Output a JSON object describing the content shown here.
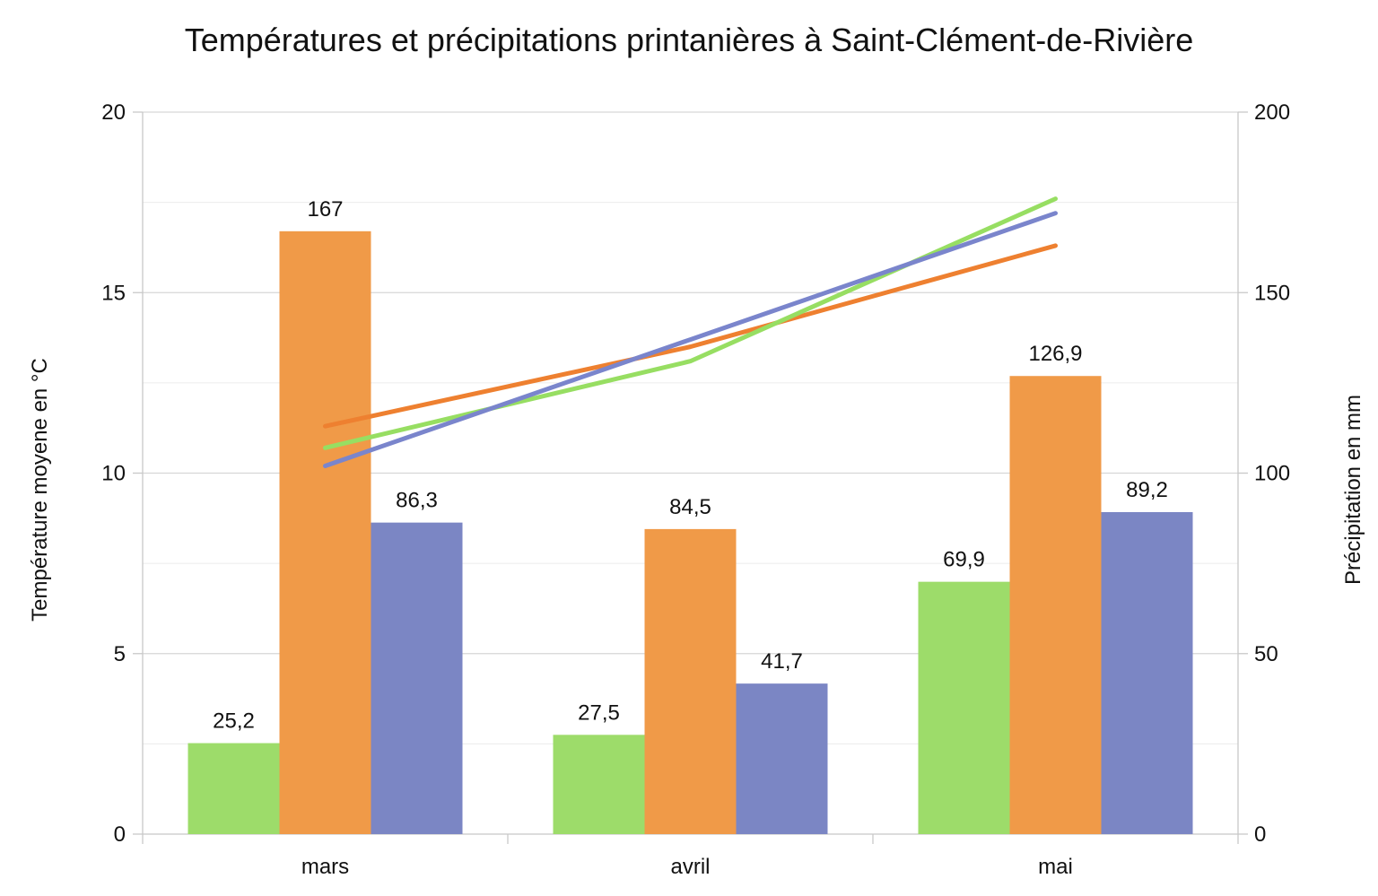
{
  "chart_data": {
    "type": "bar",
    "title": "Températures et précipitations printanières à Saint-Clément-de-Rivière",
    "categories": [
      "mars",
      "avril",
      "mai"
    ],
    "y_left": {
      "label": "Température moyene en °C",
      "range": [
        0,
        20
      ],
      "ticks": [
        "0",
        "5",
        "10",
        "15",
        "20"
      ]
    },
    "y_right": {
      "label": "Précipitation en mm",
      "range": [
        0,
        200
      ],
      "ticks": [
        "0",
        "50",
        "100",
        "150",
        "200"
      ]
    },
    "grid": true,
    "bar_series": [
      {
        "color": "#9ddc6a",
        "axis": "right",
        "values": [
          25.2,
          27.5,
          69.9
        ],
        "labels": [
          "25,2",
          "27,5",
          "69,9"
        ]
      },
      {
        "color": "#f09a48",
        "axis": "right",
        "values": [
          167,
          84.5,
          126.9
        ],
        "labels": [
          "167",
          "84,5",
          "126,9"
        ]
      },
      {
        "color": "#7b86c4",
        "axis": "right",
        "values": [
          86.3,
          41.7,
          89.2
        ],
        "labels": [
          "86,3",
          "41,7",
          "89,2"
        ]
      }
    ],
    "line_series": [
      {
        "color": "#ee8030",
        "axis": "left",
        "values": [
          11.3,
          13.5,
          16.3
        ]
      },
      {
        "color": "#97de62",
        "axis": "left",
        "values": [
          10.7,
          13.1,
          17.6
        ]
      },
      {
        "color": "#7a85cc",
        "axis": "left",
        "values": [
          10.2,
          13.7,
          17.2
        ]
      }
    ]
  }
}
